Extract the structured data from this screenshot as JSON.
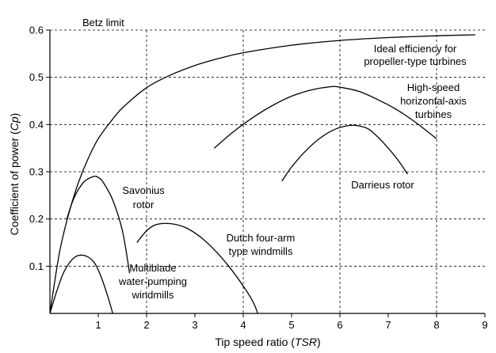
{
  "chart_data": {
    "type": "line",
    "xlabel": "Tip speed ratio",
    "xlabel_var": "TSR",
    "ylabel": "Coefficient of power",
    "ylabel_var": "Cp",
    "xlim": [
      0,
      9
    ],
    "ylim": [
      0,
      0.6
    ],
    "xticks": [
      1,
      2,
      3,
      4,
      5,
      6,
      7,
      8,
      9
    ],
    "yticks": [
      0.1,
      0.2,
      0.3,
      0.4,
      0.5,
      0.6
    ],
    "ytick_labels": [
      "0.1",
      "0.2",
      "0.3",
      "0.4",
      "0.5",
      "0.6"
    ],
    "grid": "dashed",
    "grid_x": [
      2,
      4,
      6,
      8
    ],
    "grid_y": [
      0.1,
      0.2,
      0.3,
      0.4,
      0.5,
      0.6
    ],
    "series": [
      {
        "name": "Ideal efficiency for propeller-type turbines",
        "x": [
          0,
          0.2,
          0.4,
          0.6,
          0.8,
          1.0,
          1.25,
          1.5,
          2.0,
          2.5,
          3.0,
          3.5,
          4.0,
          5.0,
          6.0,
          7.0,
          8.0,
          8.8
        ],
        "y": [
          0,
          0.13,
          0.215,
          0.28,
          0.33,
          0.37,
          0.405,
          0.435,
          0.478,
          0.505,
          0.525,
          0.54,
          0.552,
          0.568,
          0.578,
          0.584,
          0.588,
          0.59
        ]
      },
      {
        "name": "High-speed horizontal-axis turbines",
        "x": [
          3.4,
          3.8,
          4.2,
          4.6,
          5.0,
          5.4,
          5.8,
          6.0,
          6.4,
          6.8,
          7.2,
          7.6,
          8.0
        ],
        "y": [
          0.35,
          0.385,
          0.415,
          0.44,
          0.46,
          0.473,
          0.48,
          0.479,
          0.47,
          0.452,
          0.43,
          0.402,
          0.37
        ]
      },
      {
        "name": "Darrieus rotor",
        "x": [
          4.8,
          5.0,
          5.3,
          5.6,
          5.9,
          6.2,
          6.4,
          6.6,
          6.8,
          7.0,
          7.2,
          7.4
        ],
        "y": [
          0.28,
          0.31,
          0.345,
          0.372,
          0.39,
          0.398,
          0.397,
          0.39,
          0.372,
          0.35,
          0.325,
          0.295
        ]
      },
      {
        "name": "Savonius rotor",
        "x": [
          0.35,
          0.5,
          0.7,
          0.9,
          1.0,
          1.1,
          1.3,
          1.5,
          1.65
        ],
        "y": [
          0.2,
          0.245,
          0.278,
          0.29,
          0.288,
          0.278,
          0.24,
          0.175,
          0.085
        ]
      },
      {
        "name": "Dutch four-arm type windmills",
        "x": [
          1.8,
          2.0,
          2.2,
          2.5,
          2.8,
          3.1,
          3.4,
          3.7,
          4.0,
          4.2,
          4.3
        ],
        "y": [
          0.15,
          0.175,
          0.188,
          0.19,
          0.182,
          0.163,
          0.135,
          0.1,
          0.058,
          0.025,
          0.0
        ]
      },
      {
        "name": "Multiblade water-pumping windmills",
        "x": [
          0.0,
          0.15,
          0.3,
          0.5,
          0.7,
          0.9,
          1.05,
          1.2,
          1.3
        ],
        "y": [
          0.0,
          0.05,
          0.09,
          0.118,
          0.123,
          0.11,
          0.08,
          0.035,
          0.0
        ]
      }
    ],
    "annotations": [
      {
        "id": "betz",
        "lines": [
          "Betz limit"
        ]
      },
      {
        "id": "ideal",
        "lines": [
          "Ideal efficiency for",
          "propeller-type turbines"
        ]
      },
      {
        "id": "highspeed",
        "lines": [
          "High-speed",
          "horizontal-axis",
          "turbines"
        ]
      },
      {
        "id": "darrieus",
        "lines": [
          "Darrieus rotor"
        ]
      },
      {
        "id": "savonius",
        "lines": [
          "Savonius",
          "rotor"
        ]
      },
      {
        "id": "dutch",
        "lines": [
          "Dutch four-arm",
          "type windmills"
        ]
      },
      {
        "id": "multiblade",
        "lines": [
          "Multiblade",
          "water-pumping",
          "windmills"
        ]
      }
    ]
  }
}
